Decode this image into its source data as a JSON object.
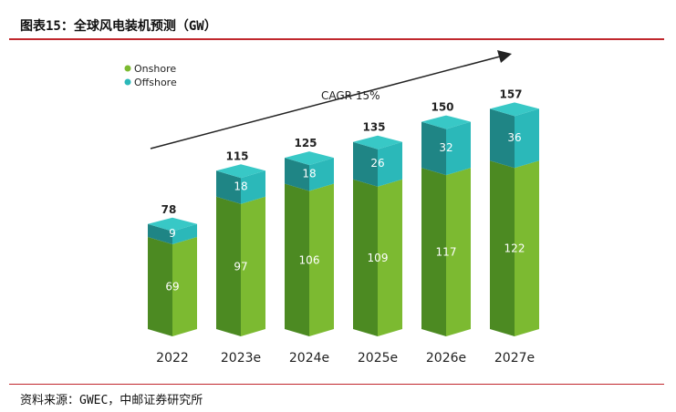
{
  "figure": {
    "title": "图表15：全球风电装机预测（GW）",
    "source": "资料来源：GWEC，中邮证券研究所"
  },
  "colors": {
    "onshore_front": "#7cba31",
    "onshore_side": "#4c8a22",
    "onshore_top": "#5b9b2a",
    "offshore_front": "#2bb8b9",
    "offshore_side": "#1f8585",
    "offshore_top": "#38c8c6",
    "rule": "#c0272d",
    "text": "#222222",
    "arrow": "#222222"
  },
  "chart_data": {
    "type": "bar",
    "stacked": true,
    "categories": [
      "2022",
      "2023e",
      "2024e",
      "2025e",
      "2026e",
      "2027e"
    ],
    "series": [
      {
        "name": "Onshore",
        "values": [
          69,
          97,
          106,
          109,
          117,
          122
        ]
      },
      {
        "name": "Offshore",
        "values": [
          9,
          18,
          18,
          26,
          32,
          36
        ]
      }
    ],
    "totals": [
      78,
      115,
      125,
      135,
      150,
      157
    ],
    "annotation": "CAGR 15%",
    "legend_position": "top-left",
    "ylim": [
      0,
      170
    ],
    "title": "",
    "xlabel": "",
    "ylabel": ""
  }
}
